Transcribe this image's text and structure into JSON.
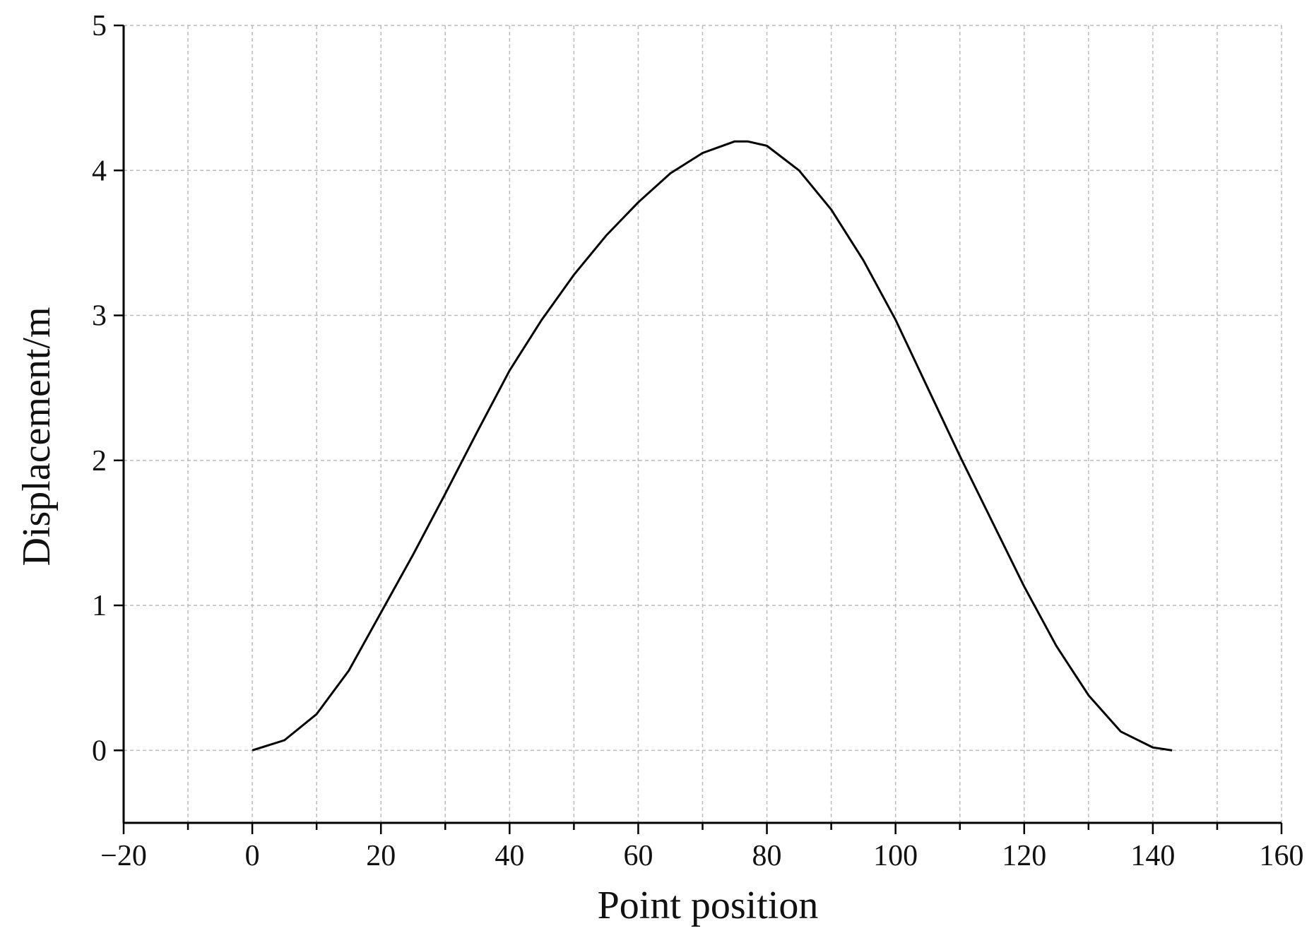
{
  "chart_data": {
    "type": "line",
    "x_label": "Point position",
    "y_label": "Displacement/m",
    "x": [
      0,
      5,
      10,
      15,
      20,
      25,
      30,
      35,
      40,
      45,
      50,
      55,
      60,
      65,
      70,
      75,
      77,
      80,
      85,
      90,
      95,
      100,
      105,
      110,
      115,
      120,
      125,
      130,
      135,
      140,
      143
    ],
    "series": [
      {
        "color": "#000000",
        "values": [
          0,
          0.07,
          0.25,
          0.55,
          0.95,
          1.35,
          1.77,
          2.2,
          2.62,
          2.97,
          3.28,
          3.55,
          3.78,
          3.98,
          4.12,
          4.2,
          4.2,
          4.17,
          4.0,
          3.73,
          3.38,
          2.97,
          2.5,
          2.03,
          1.58,
          1.13,
          0.72,
          0.38,
          0.13,
          0.02,
          0
        ]
      }
    ],
    "xlim": [
      -20,
      160
    ],
    "ylim": [
      -0.5,
      5
    ],
    "xticks": [
      {
        "value": -20,
        "label": "−20"
      },
      0,
      20,
      40,
      60,
      80,
      100,
      120,
      140,
      160
    ],
    "x_minor_ticks": [
      -10,
      10,
      30,
      50,
      70,
      90,
      110,
      130,
      150
    ],
    "yticks": [
      0,
      1,
      2,
      3,
      4,
      5
    ],
    "grid": true
  }
}
